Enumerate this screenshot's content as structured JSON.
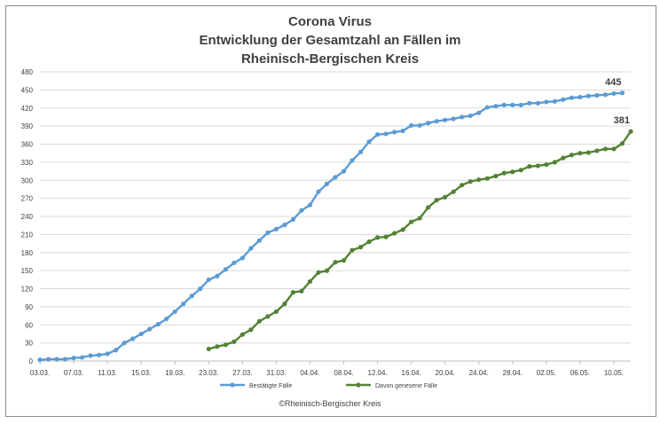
{
  "chart_data": {
    "type": "line",
    "title": [
      "Corona Virus",
      "Entwicklung der Gesamtzahl an Fällen im",
      "Rheinisch-Bergischen Kreis"
    ],
    "credit": "©Rheinisch-Bergischer Kreis",
    "y_ticks": [
      0,
      30,
      60,
      90,
      120,
      150,
      180,
      210,
      240,
      270,
      300,
      330,
      360,
      390,
      420,
      450,
      480
    ],
    "ylim": [
      0,
      480
    ],
    "grid": true,
    "legend_position": "bottom",
    "x_tick_labels": [
      "03.03.",
      "07.03.",
      "11.03.",
      "15.03.",
      "19.03.",
      "23.03.",
      "27.03.",
      "31.03.",
      "04.04.",
      "08.04.",
      "12.04.",
      "16.04.",
      "20.04.",
      "24.04.",
      "28.04.",
      "02.05.",
      "06.05.",
      "10.05."
    ],
    "x_start_date": "03.03.",
    "x_end_date": "12.05.",
    "series": [
      {
        "name": "Bestätigte Fälle",
        "color": "#5b9bd5",
        "start_date": "03.03.",
        "end_label": "445",
        "values": [
          2,
          3,
          3,
          3,
          5,
          6,
          9,
          10,
          12,
          18,
          30,
          37,
          45,
          53,
          61,
          70,
          82,
          95,
          108,
          120,
          135,
          141,
          152,
          163,
          171,
          187,
          200,
          213,
          219,
          226,
          235,
          250,
          259,
          281,
          294,
          305,
          315,
          333,
          347,
          364,
          376,
          377,
          380,
          382,
          391,
          391,
          395,
          398,
          400,
          402,
          405,
          407,
          412,
          421,
          423,
          425,
          425,
          425,
          428,
          428,
          430,
          431,
          434,
          437,
          438,
          440,
          441,
          442,
          444,
          445
        ]
      },
      {
        "name": "Davon genesene Fälle",
        "color": "#548235",
        "start_date": "23.03.",
        "end_label": "381",
        "values": [
          20,
          24,
          27,
          32,
          44,
          52,
          66,
          74,
          82,
          95,
          114,
          116,
          132,
          147,
          150,
          164,
          167,
          184,
          189,
          198,
          205,
          206,
          212,
          218,
          231,
          237,
          255,
          267,
          272,
          281,
          292,
          298,
          301,
          303,
          307,
          312,
          314,
          317,
          323,
          324,
          326,
          330,
          337,
          342,
          345,
          346,
          349,
          352,
          352,
          361,
          381
        ]
      }
    ]
  }
}
